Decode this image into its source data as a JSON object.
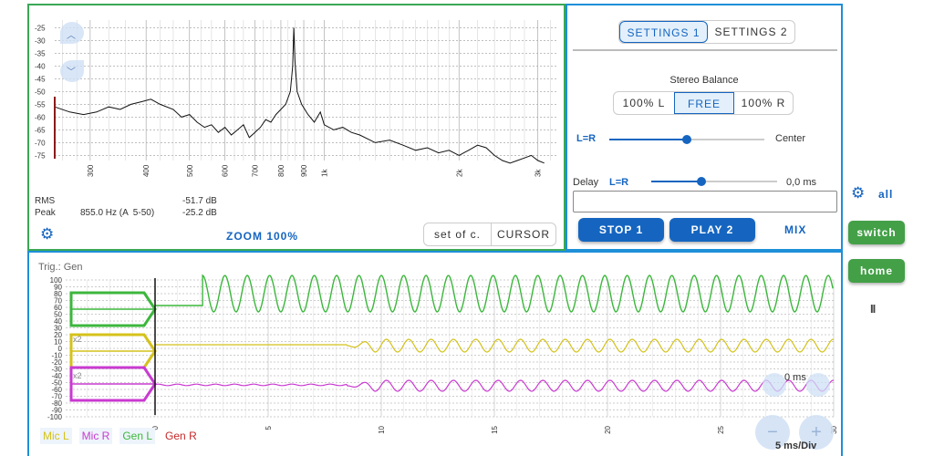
{
  "spectrum": {
    "y_ticks": [
      "-25",
      "-30",
      "-35",
      "-40",
      "-45",
      "-50",
      "-55",
      "-60",
      "-65",
      "-70",
      "-75"
    ],
    "x_ticks": [
      "300",
      "400",
      "500",
      "600",
      "700",
      "800",
      "900",
      "1k",
      "2k",
      "3k"
    ],
    "rms_label": "RMS",
    "rms_value": "-51.7 dB",
    "peak_label": "Peak",
    "peak_freq": "855.0 Hz (A  5-50)",
    "peak_value": "-25.2 dB",
    "zoom_label": "ZOOM 100%",
    "set_of_c_label": "set of c.",
    "cursor_label": "CURSOR",
    "chart_data": {
      "type": "line",
      "xscale": "log",
      "x": [
        250,
        270,
        290,
        310,
        330,
        350,
        370,
        390,
        410,
        430,
        460,
        480,
        500,
        520,
        540,
        560,
        580,
        600,
        620,
        640,
        660,
        680,
        700,
        720,
        740,
        760,
        780,
        800,
        820,
        840,
        850,
        855,
        860,
        870,
        890,
        920,
        950,
        980,
        1000,
        1050,
        1100,
        1150,
        1200,
        1300,
        1400,
        1500,
        1600,
        1700,
        1800,
        1900,
        2000,
        2100,
        2200,
        2300,
        2400,
        2500,
        2600,
        2700,
        2800,
        2900,
        3000,
        3100
      ],
      "y": [
        -56,
        -58,
        -59,
        -58,
        -56,
        -57,
        -55,
        -54,
        -53,
        -55,
        -57,
        -60,
        -59,
        -62,
        -64,
        -63,
        -66,
        -64,
        -67,
        -65,
        -63,
        -68,
        -66,
        -64,
        -61,
        -62,
        -59,
        -57,
        -55,
        -50,
        -40,
        -25,
        -38,
        -50,
        -55,
        -59,
        -62,
        -58,
        -63,
        -65,
        -64,
        -66,
        -67,
        -70,
        -69,
        -71,
        -73,
        -72,
        -74,
        -73,
        -75,
        -73,
        -71,
        -72,
        -75,
        -77,
        -78,
        -77,
        -76,
        -75,
        -77,
        -78
      ],
      "ylim": [
        -77,
        -22
      ]
    }
  },
  "settings": {
    "tab1": "SETTINGS 1",
    "tab2": "SETTINGS 2",
    "stereo_balance_label": "Stereo Balance",
    "bal_left": "100% L",
    "bal_free": "FREE",
    "bal_right": "100% R",
    "lr_label": "L=R",
    "center_label": "Center",
    "balance_position": 0.5,
    "delay_label": "Delay",
    "delay_lr_label": "L=R",
    "delay_value": "0,0 ms",
    "delay_position": 0.4,
    "stop_label": "STOP 1",
    "play_label": "PLAY 2",
    "mix_label": "MIX"
  },
  "side": {
    "all_label": "all",
    "switch_label": "switch",
    "home_label": "home",
    "pause_label": "II"
  },
  "scope": {
    "trig_label": "Trig.: Gen",
    "y_ticks": [
      "100",
      "90",
      "80",
      "70",
      "60",
      "50",
      "40",
      "30",
      "20",
      "10",
      "0",
      "-10",
      "-20",
      "-30",
      "-40",
      "-50",
      "-60",
      "-70",
      "-80",
      "-90",
      "-100"
    ],
    "x_ticks": [
      "0",
      "5",
      "10",
      "15",
      "20",
      "25",
      "30"
    ],
    "time_label": "0 ms",
    "div_label": "5 ms/Div",
    "minus_label": "−",
    "plus_label": "+",
    "x2_label_1": "x2",
    "x2_label_2": "x2",
    "legend": [
      {
        "label": "Mic L",
        "color": "#d4c21a"
      },
      {
        "label": "Mic R",
        "color": "#c93ad1"
      },
      {
        "label": "Gen L",
        "color": "#3cb73c"
      },
      {
        "label": "Gen R",
        "color": "#c62828"
      }
    ],
    "colors": {
      "green": "#3cb73c",
      "yellow": "#d4c21a",
      "magenta": "#c93ad1"
    }
  }
}
